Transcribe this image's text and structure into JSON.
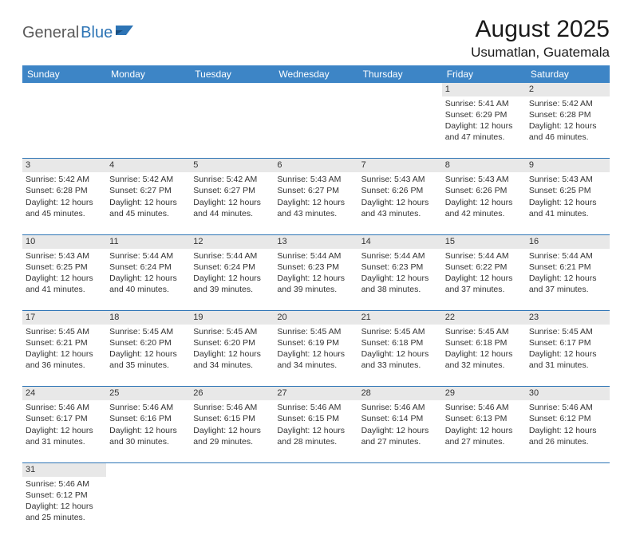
{
  "logo": {
    "general": "General",
    "blue": "Blue"
  },
  "title": "August 2025",
  "location": "Usumatlan, Guatemala",
  "colors": {
    "header_bg": "#3d85c6",
    "header_text": "#ffffff",
    "daynum_bg": "#e8e8e8",
    "rule": "#2d74b5",
    "logo_gray": "#5a5a5a",
    "logo_blue": "#2d74b5"
  },
  "weekdays": [
    "Sunday",
    "Monday",
    "Tuesday",
    "Wednesday",
    "Thursday",
    "Friday",
    "Saturday"
  ],
  "weeks": [
    {
      "nums": [
        "",
        "",
        "",
        "",
        "",
        "1",
        "2"
      ],
      "cells": [
        null,
        null,
        null,
        null,
        null,
        {
          "sunrise": "5:41 AM",
          "sunset": "6:29 PM",
          "daylight": "12 hours and 47 minutes."
        },
        {
          "sunrise": "5:42 AM",
          "sunset": "6:28 PM",
          "daylight": "12 hours and 46 minutes."
        }
      ]
    },
    {
      "nums": [
        "3",
        "4",
        "5",
        "6",
        "7",
        "8",
        "9"
      ],
      "cells": [
        {
          "sunrise": "5:42 AM",
          "sunset": "6:28 PM",
          "daylight": "12 hours and 45 minutes."
        },
        {
          "sunrise": "5:42 AM",
          "sunset": "6:27 PM",
          "daylight": "12 hours and 45 minutes."
        },
        {
          "sunrise": "5:42 AM",
          "sunset": "6:27 PM",
          "daylight": "12 hours and 44 minutes."
        },
        {
          "sunrise": "5:43 AM",
          "sunset": "6:27 PM",
          "daylight": "12 hours and 43 minutes."
        },
        {
          "sunrise": "5:43 AM",
          "sunset": "6:26 PM",
          "daylight": "12 hours and 43 minutes."
        },
        {
          "sunrise": "5:43 AM",
          "sunset": "6:26 PM",
          "daylight": "12 hours and 42 minutes."
        },
        {
          "sunrise": "5:43 AM",
          "sunset": "6:25 PM",
          "daylight": "12 hours and 41 minutes."
        }
      ]
    },
    {
      "nums": [
        "10",
        "11",
        "12",
        "13",
        "14",
        "15",
        "16"
      ],
      "cells": [
        {
          "sunrise": "5:43 AM",
          "sunset": "6:25 PM",
          "daylight": "12 hours and 41 minutes."
        },
        {
          "sunrise": "5:44 AM",
          "sunset": "6:24 PM",
          "daylight": "12 hours and 40 minutes."
        },
        {
          "sunrise": "5:44 AM",
          "sunset": "6:24 PM",
          "daylight": "12 hours and 39 minutes."
        },
        {
          "sunrise": "5:44 AM",
          "sunset": "6:23 PM",
          "daylight": "12 hours and 39 minutes."
        },
        {
          "sunrise": "5:44 AM",
          "sunset": "6:23 PM",
          "daylight": "12 hours and 38 minutes."
        },
        {
          "sunrise": "5:44 AM",
          "sunset": "6:22 PM",
          "daylight": "12 hours and 37 minutes."
        },
        {
          "sunrise": "5:44 AM",
          "sunset": "6:21 PM",
          "daylight": "12 hours and 37 minutes."
        }
      ]
    },
    {
      "nums": [
        "17",
        "18",
        "19",
        "20",
        "21",
        "22",
        "23"
      ],
      "cells": [
        {
          "sunrise": "5:45 AM",
          "sunset": "6:21 PM",
          "daylight": "12 hours and 36 minutes."
        },
        {
          "sunrise": "5:45 AM",
          "sunset": "6:20 PM",
          "daylight": "12 hours and 35 minutes."
        },
        {
          "sunrise": "5:45 AM",
          "sunset": "6:20 PM",
          "daylight": "12 hours and 34 minutes."
        },
        {
          "sunrise": "5:45 AM",
          "sunset": "6:19 PM",
          "daylight": "12 hours and 34 minutes."
        },
        {
          "sunrise": "5:45 AM",
          "sunset": "6:18 PM",
          "daylight": "12 hours and 33 minutes."
        },
        {
          "sunrise": "5:45 AM",
          "sunset": "6:18 PM",
          "daylight": "12 hours and 32 minutes."
        },
        {
          "sunrise": "5:45 AM",
          "sunset": "6:17 PM",
          "daylight": "12 hours and 31 minutes."
        }
      ]
    },
    {
      "nums": [
        "24",
        "25",
        "26",
        "27",
        "28",
        "29",
        "30"
      ],
      "cells": [
        {
          "sunrise": "5:46 AM",
          "sunset": "6:17 PM",
          "daylight": "12 hours and 31 minutes."
        },
        {
          "sunrise": "5:46 AM",
          "sunset": "6:16 PM",
          "daylight": "12 hours and 30 minutes."
        },
        {
          "sunrise": "5:46 AM",
          "sunset": "6:15 PM",
          "daylight": "12 hours and 29 minutes."
        },
        {
          "sunrise": "5:46 AM",
          "sunset": "6:15 PM",
          "daylight": "12 hours and 28 minutes."
        },
        {
          "sunrise": "5:46 AM",
          "sunset": "6:14 PM",
          "daylight": "12 hours and 27 minutes."
        },
        {
          "sunrise": "5:46 AM",
          "sunset": "6:13 PM",
          "daylight": "12 hours and 27 minutes."
        },
        {
          "sunrise": "5:46 AM",
          "sunset": "6:12 PM",
          "daylight": "12 hours and 26 minutes."
        }
      ]
    },
    {
      "nums": [
        "31",
        "",
        "",
        "",
        "",
        "",
        ""
      ],
      "cells": [
        {
          "sunrise": "5:46 AM",
          "sunset": "6:12 PM",
          "daylight": "12 hours and 25 minutes."
        },
        null,
        null,
        null,
        null,
        null,
        null
      ]
    }
  ],
  "labels": {
    "sunrise": "Sunrise: ",
    "sunset": "Sunset: ",
    "daylight": "Daylight: "
  }
}
